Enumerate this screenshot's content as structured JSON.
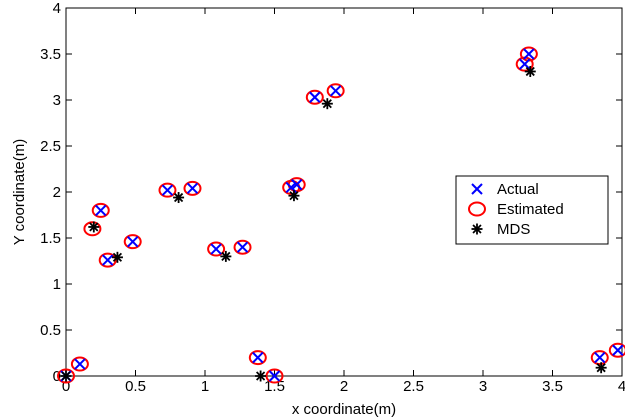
{
  "chart_data": {
    "type": "scatter",
    "xlabel": "x coordinate(m)",
    "ylabel": "Y coordinate(m)",
    "xlim": [
      0,
      4
    ],
    "ylim": [
      0,
      4
    ],
    "xticks": [
      0,
      0.5,
      1,
      1.5,
      2,
      2.5,
      3,
      3.5,
      4
    ],
    "xtick_labels": [
      "0",
      "0.5",
      "1",
      "1.5",
      "2",
      "2.5",
      "3",
      "3.5",
      "4"
    ],
    "yticks": [
      0,
      0.5,
      1,
      1.5,
      2,
      2.5,
      3,
      3.5,
      4
    ],
    "ytick_labels": [
      "0",
      "0.5",
      "1",
      "1.5",
      "2",
      "2.5",
      "3",
      "3.5",
      "4"
    ],
    "grid": false,
    "legend_position": "center-right",
    "series": [
      {
        "name": "Actual",
        "marker": "x",
        "color": "#0000ff",
        "points": [
          [
            0.0,
            0.0
          ],
          [
            0.1,
            0.13
          ],
          [
            0.25,
            1.8
          ],
          [
            0.3,
            1.26
          ],
          [
            0.48,
            1.46
          ],
          [
            0.73,
            2.02
          ],
          [
            0.91,
            2.04
          ],
          [
            1.08,
            1.38
          ],
          [
            1.27,
            1.4
          ],
          [
            1.38,
            0.2
          ],
          [
            1.5,
            0.0
          ],
          [
            1.62,
            2.05
          ],
          [
            1.66,
            2.08
          ],
          [
            1.79,
            3.03
          ],
          [
            1.94,
            3.1
          ],
          [
            3.3,
            3.39
          ],
          [
            3.33,
            3.5
          ],
          [
            3.84,
            0.2
          ],
          [
            3.97,
            0.28
          ]
        ]
      },
      {
        "name": "Estimated",
        "marker": "o",
        "color": "#ff0000",
        "points": [
          [
            0.0,
            0.0
          ],
          [
            0.1,
            0.13
          ],
          [
            0.19,
            1.6
          ],
          [
            0.25,
            1.8
          ],
          [
            0.3,
            1.26
          ],
          [
            0.48,
            1.46
          ],
          [
            0.73,
            2.02
          ],
          [
            0.91,
            2.04
          ],
          [
            1.08,
            1.38
          ],
          [
            1.27,
            1.4
          ],
          [
            1.38,
            0.2
          ],
          [
            1.5,
            0.0
          ],
          [
            1.62,
            2.05
          ],
          [
            1.66,
            2.08
          ],
          [
            1.79,
            3.03
          ],
          [
            1.94,
            3.1
          ],
          [
            3.3,
            3.39
          ],
          [
            3.33,
            3.5
          ],
          [
            3.84,
            0.2
          ],
          [
            3.97,
            0.28
          ]
        ]
      },
      {
        "name": "MDS",
        "marker": "*",
        "color": "#000000",
        "points": [
          [
            0.0,
            0.0
          ],
          [
            0.2,
            1.62
          ],
          [
            0.37,
            1.29
          ],
          [
            0.81,
            1.94
          ],
          [
            1.15,
            1.3
          ],
          [
            1.4,
            0.0
          ],
          [
            1.64,
            1.96
          ],
          [
            1.88,
            2.96
          ],
          [
            3.34,
            3.31
          ],
          [
            3.85,
            0.09
          ]
        ]
      }
    ]
  }
}
